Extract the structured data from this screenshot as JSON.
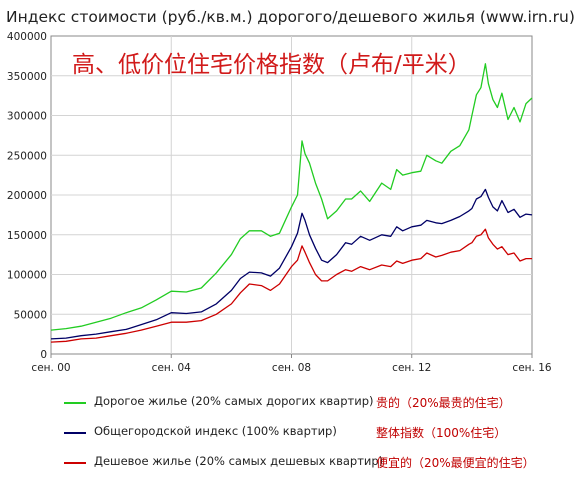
{
  "title": "Индекс стоимости (руб./кв.м.) дорогого/дешевого жилья (www.irn.ru)",
  "annotation_cn": "高、低价位住宅价格指数（卢布/平米）",
  "colors": {
    "expensive": "#22cc22",
    "overall": "#000066",
    "cheap": "#cc0000"
  },
  "legend": [
    {
      "key": "expensive",
      "label": "Дорогое жилье (20% самых дорогих квартир)",
      "label_cn": "贵的（20%最贵的住宅）"
    },
    {
      "key": "overall",
      "label": "Общегородской индекс (100% квартир)",
      "label_cn": "整体指数（100%住宅）"
    },
    {
      "key": "cheap",
      "label": "Дешевое жилье (20% самых дешевых квартир)",
      "label_cn": "便宜的（20%最便宜的住宅）"
    }
  ],
  "chart_data": {
    "type": "line",
    "title": "Индекс стоимости (руб./кв.м.) дорогого/дешевого жилья (www.irn.ru)",
    "x_ticks": [
      {
        "value": 2000,
        "label": "сен. 00"
      },
      {
        "value": 2004,
        "label": "сен. 04"
      },
      {
        "value": 2008,
        "label": "сен. 08"
      },
      {
        "value": 2012,
        "label": "сен. 12"
      },
      {
        "value": 2016,
        "label": "сен. 16"
      }
    ],
    "xlim": [
      2000,
      2016
    ],
    "ylim": [
      0,
      400000
    ],
    "y_ticks": [
      0,
      50000,
      100000,
      150000,
      200000,
      250000,
      300000,
      350000,
      400000
    ],
    "grid": true,
    "legend_position": "bottom",
    "series": [
      {
        "key": "expensive",
        "name": "Дорогое жилье (20% самых дорогих квартир)",
        "points": [
          [
            2000,
            30000
          ],
          [
            2000.5,
            32000
          ],
          [
            2001,
            35000
          ],
          [
            2001.5,
            40000
          ],
          [
            2002,
            45000
          ],
          [
            2002.5,
            52000
          ],
          [
            2003,
            58000
          ],
          [
            2003.5,
            68000
          ],
          [
            2004,
            79000
          ],
          [
            2004.5,
            78000
          ],
          [
            2005,
            83000
          ],
          [
            2005.5,
            102000
          ],
          [
            2006,
            125000
          ],
          [
            2006.3,
            145000
          ],
          [
            2006.6,
            155000
          ],
          [
            2007,
            155000
          ],
          [
            2007.3,
            148000
          ],
          [
            2007.6,
            152000
          ],
          [
            2008,
            185000
          ],
          [
            2008.2,
            200000
          ],
          [
            2008.35,
            268000
          ],
          [
            2008.45,
            252000
          ],
          [
            2008.6,
            240000
          ],
          [
            2008.8,
            215000
          ],
          [
            2009,
            195000
          ],
          [
            2009.2,
            170000
          ],
          [
            2009.5,
            180000
          ],
          [
            2009.8,
            195000
          ],
          [
            2010,
            195000
          ],
          [
            2010.3,
            205000
          ],
          [
            2010.6,
            192000
          ],
          [
            2011,
            215000
          ],
          [
            2011.3,
            207000
          ],
          [
            2011.5,
            232000
          ],
          [
            2011.7,
            225000
          ],
          [
            2012,
            228000
          ],
          [
            2012.3,
            230000
          ],
          [
            2012.5,
            250000
          ],
          [
            2012.8,
            243000
          ],
          [
            2013,
            240000
          ],
          [
            2013.3,
            255000
          ],
          [
            2013.6,
            262000
          ],
          [
            2013.9,
            282000
          ],
          [
            2014,
            300000
          ],
          [
            2014.15,
            326000
          ],
          [
            2014.3,
            335000
          ],
          [
            2014.45,
            365000
          ],
          [
            2014.55,
            340000
          ],
          [
            2014.7,
            320000
          ],
          [
            2014.85,
            310000
          ],
          [
            2015,
            328000
          ],
          [
            2015.2,
            295000
          ],
          [
            2015.4,
            310000
          ],
          [
            2015.6,
            292000
          ],
          [
            2015.8,
            315000
          ],
          [
            2016,
            322000
          ]
        ]
      },
      {
        "key": "overall",
        "name": "Общегородской индекс (100% квартир)",
        "points": [
          [
            2000,
            19000
          ],
          [
            2000.5,
            20000
          ],
          [
            2001,
            23000
          ],
          [
            2001.5,
            25000
          ],
          [
            2002,
            28000
          ],
          [
            2002.5,
            31000
          ],
          [
            2003,
            37000
          ],
          [
            2003.5,
            43000
          ],
          [
            2004,
            52000
          ],
          [
            2004.5,
            51000
          ],
          [
            2005,
            53000
          ],
          [
            2005.5,
            63000
          ],
          [
            2006,
            80000
          ],
          [
            2006.3,
            95000
          ],
          [
            2006.6,
            103000
          ],
          [
            2007,
            102000
          ],
          [
            2007.3,
            98000
          ],
          [
            2007.6,
            108000
          ],
          [
            2008,
            135000
          ],
          [
            2008.2,
            152000
          ],
          [
            2008.35,
            177000
          ],
          [
            2008.45,
            168000
          ],
          [
            2008.6,
            150000
          ],
          [
            2008.8,
            133000
          ],
          [
            2009,
            118000
          ],
          [
            2009.2,
            115000
          ],
          [
            2009.5,
            125000
          ],
          [
            2009.8,
            140000
          ],
          [
            2010,
            138000
          ],
          [
            2010.3,
            148000
          ],
          [
            2010.6,
            143000
          ],
          [
            2011,
            150000
          ],
          [
            2011.3,
            148000
          ],
          [
            2011.5,
            160000
          ],
          [
            2011.7,
            155000
          ],
          [
            2012,
            160000
          ],
          [
            2012.3,
            162000
          ],
          [
            2012.5,
            168000
          ],
          [
            2012.8,
            165000
          ],
          [
            2013,
            164000
          ],
          [
            2013.3,
            168000
          ],
          [
            2013.6,
            173000
          ],
          [
            2013.9,
            180000
          ],
          [
            2014,
            183000
          ],
          [
            2014.15,
            195000
          ],
          [
            2014.3,
            198000
          ],
          [
            2014.45,
            207000
          ],
          [
            2014.55,
            197000
          ],
          [
            2014.7,
            185000
          ],
          [
            2014.85,
            180000
          ],
          [
            2015,
            193000
          ],
          [
            2015.2,
            178000
          ],
          [
            2015.4,
            182000
          ],
          [
            2015.6,
            172000
          ],
          [
            2015.8,
            176000
          ],
          [
            2016,
            175000
          ]
        ]
      },
      {
        "key": "cheap",
        "name": "Дешевое жилье (20% самых дешевых квартир)",
        "points": [
          [
            2000,
            15000
          ],
          [
            2000.5,
            16000
          ],
          [
            2001,
            19000
          ],
          [
            2001.5,
            20000
          ],
          [
            2002,
            23000
          ],
          [
            2002.5,
            26000
          ],
          [
            2003,
            30000
          ],
          [
            2003.5,
            35000
          ],
          [
            2004,
            40000
          ],
          [
            2004.5,
            40000
          ],
          [
            2005,
            42000
          ],
          [
            2005.5,
            50000
          ],
          [
            2006,
            63000
          ],
          [
            2006.3,
            77000
          ],
          [
            2006.6,
            88000
          ],
          [
            2007,
            86000
          ],
          [
            2007.3,
            80000
          ],
          [
            2007.6,
            88000
          ],
          [
            2008,
            110000
          ],
          [
            2008.2,
            118000
          ],
          [
            2008.35,
            136000
          ],
          [
            2008.45,
            128000
          ],
          [
            2008.6,
            115000
          ],
          [
            2008.8,
            100000
          ],
          [
            2009,
            92000
          ],
          [
            2009.2,
            92000
          ],
          [
            2009.5,
            100000
          ],
          [
            2009.8,
            106000
          ],
          [
            2010,
            104000
          ],
          [
            2010.3,
            110000
          ],
          [
            2010.6,
            106000
          ],
          [
            2011,
            112000
          ],
          [
            2011.3,
            110000
          ],
          [
            2011.5,
            117000
          ],
          [
            2011.7,
            114000
          ],
          [
            2012,
            118000
          ],
          [
            2012.3,
            120000
          ],
          [
            2012.5,
            127000
          ],
          [
            2012.8,
            122000
          ],
          [
            2013,
            124000
          ],
          [
            2013.3,
            128000
          ],
          [
            2013.6,
            130000
          ],
          [
            2013.9,
            138000
          ],
          [
            2014,
            140000
          ],
          [
            2014.15,
            148000
          ],
          [
            2014.3,
            150000
          ],
          [
            2014.45,
            157000
          ],
          [
            2014.55,
            146000
          ],
          [
            2014.7,
            138000
          ],
          [
            2014.85,
            132000
          ],
          [
            2015,
            135000
          ],
          [
            2015.2,
            125000
          ],
          [
            2015.4,
            127000
          ],
          [
            2015.6,
            117000
          ],
          [
            2015.8,
            120000
          ],
          [
            2016,
            120000
          ]
        ]
      }
    ]
  }
}
